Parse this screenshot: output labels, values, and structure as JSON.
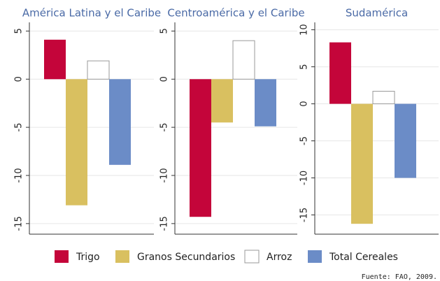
{
  "chart_data": [
    {
      "type": "bar",
      "title": "América Latina y el Caribe",
      "values": [
        4.1,
        -13.1,
        1.9,
        -8.9
      ],
      "ylim": [
        -16.1,
        5.9
      ],
      "yticks": [
        5,
        0,
        -5,
        -10,
        -15
      ],
      "grid": true
    },
    {
      "type": "bar",
      "title": "Centroamérica y el Caribe",
      "values": [
        -14.3,
        -4.5,
        4.0,
        -4.9
      ],
      "ylim": [
        -16.1,
        5.9
      ],
      "yticks": [
        5,
        0,
        -5,
        -10,
        -15
      ],
      "grid": true
    },
    {
      "type": "bar",
      "title": "Sudamérica",
      "values": [
        8.3,
        -16.2,
        1.7,
        -10.0
      ],
      "ylim": [
        -17.6,
        11.0
      ],
      "yticks": [
        10,
        5,
        0,
        -5,
        -10,
        -15
      ],
      "grid": true
    }
  ],
  "legend": [
    {
      "name": "Trigo",
      "color": "#c4053a"
    },
    {
      "name": "Granos Secundarios",
      "color": "#d9c060"
    },
    {
      "name": "Arroz",
      "color": "#ffffff"
    },
    {
      "name": "Total Cereales",
      "color": "#6b8cc7"
    }
  ],
  "source": "Fuente: FAO, 2009."
}
